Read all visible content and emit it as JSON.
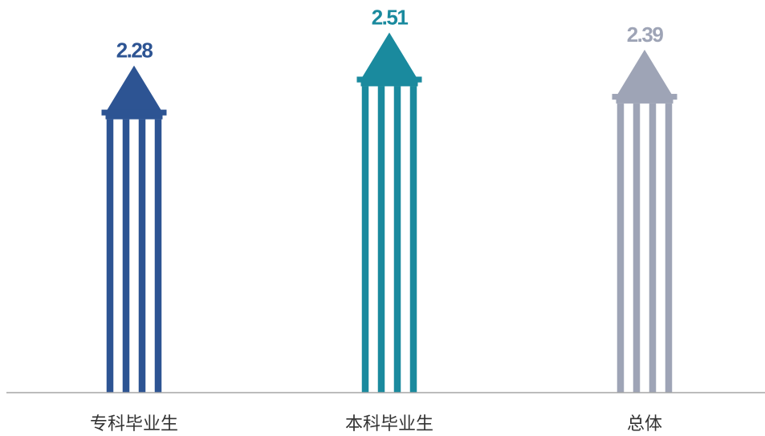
{
  "chart_data": {
    "type": "bar",
    "title": "",
    "xlabel": "",
    "ylabel": "",
    "categories": [
      "专科毕业生",
      "本科毕业生",
      "总体"
    ],
    "values": [
      2.28,
      2.51,
      2.39
    ],
    "colors": [
      "#2d5493",
      "#1a8a9e",
      "#9ea4b6"
    ],
    "ylim": [
      0,
      3.0
    ],
    "grid": false,
    "legend": "none",
    "data_labels": [
      "2.28",
      "2.51",
      "2.39"
    ]
  }
}
